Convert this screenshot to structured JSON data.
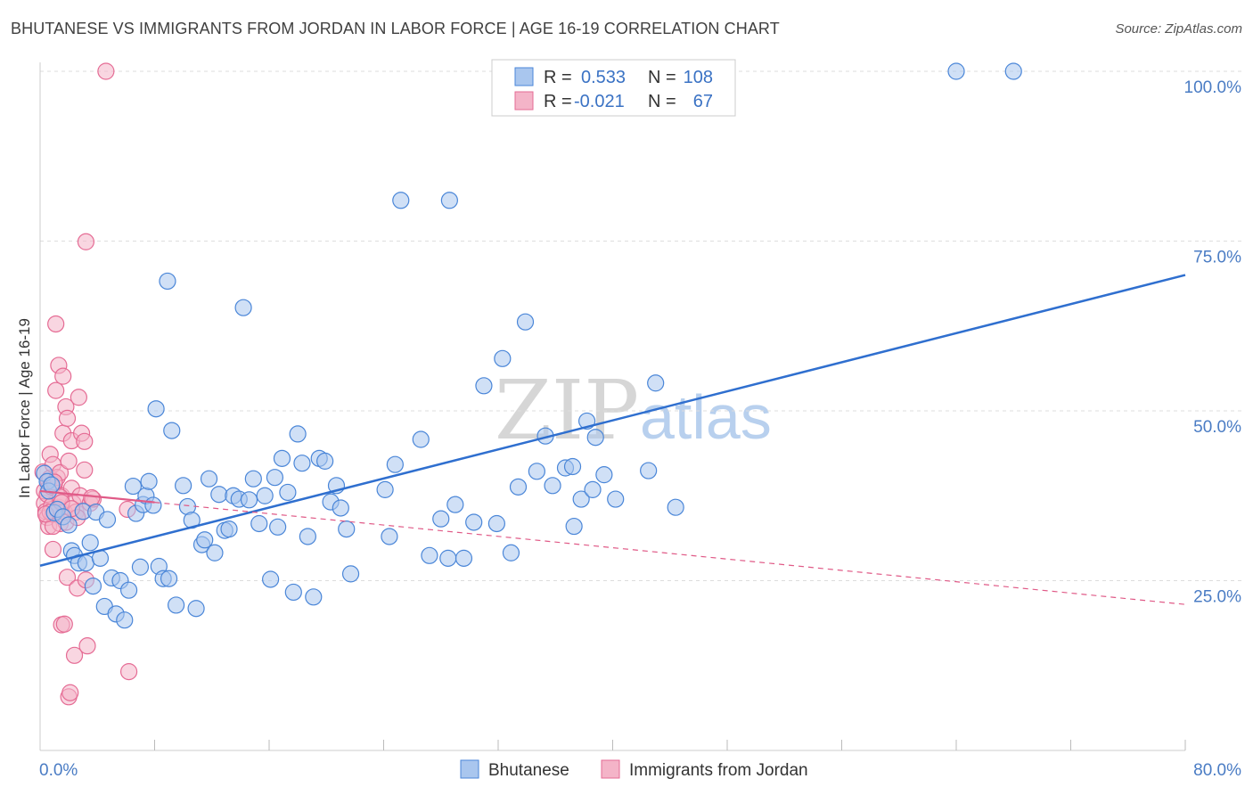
{
  "header": {
    "title": "BHUTANESE VS IMMIGRANTS FROM JORDAN IN LABOR FORCE | AGE 16-19 CORRELATION CHART",
    "source": "Source: ZipAtlas.com"
  },
  "watermark": {
    "zip": "ZIP",
    "atlas": "atlas"
  },
  "colors": {
    "blue": "#4a86d8",
    "blue_fill": "#a9c6ee",
    "blue_line": "#2f6fcf",
    "pink": "#e56b94",
    "pink_fill": "#f4b4c8",
    "pink_line": "#e05a87",
    "tick": "#4a7cc4",
    "grid": "#dddddd"
  },
  "legend": {
    "rows": [
      {
        "r_label": "R =",
        "r_value": "0.533",
        "n_label": "N =",
        "n_value": "108"
      },
      {
        "r_label": "R =",
        "r_value": "-0.021",
        "n_label": "N =",
        "n_value": "67"
      }
    ]
  },
  "chart_data": {
    "type": "scatter",
    "title": "BHUTANESE VS IMMIGRANTS FROM JORDAN IN LABOR FORCE | AGE 16-19 CORRELATION CHART",
    "xlabel": "",
    "ylabel": "In Labor Force | Age 16-19",
    "xlim": [
      0,
      80
    ],
    "ylim": [
      0,
      105
    ],
    "x_tick_labels": [
      "0.0%",
      "80.0%"
    ],
    "y_ticks": [
      25,
      50,
      75,
      100
    ],
    "y_tick_labels": [
      "25.0%",
      "50.0%",
      "75.0%",
      "100.0%"
    ],
    "legend_position": "top-center",
    "series": [
      {
        "name": "Bhutanese",
        "r": 0.533,
        "n": 108,
        "trend": {
          "x": [
            0,
            80
          ],
          "y": [
            27.2,
            70.0
          ],
          "style": "solid"
        },
        "points": [
          [
            0.3,
            40.8
          ],
          [
            0.5,
            39.6
          ],
          [
            0.6,
            38.2
          ],
          [
            0.8,
            39.1
          ],
          [
            1.0,
            35.0
          ],
          [
            1.2,
            35.5
          ],
          [
            1.6,
            34.4
          ],
          [
            2.0,
            33.2
          ],
          [
            2.2,
            29.4
          ],
          [
            2.4,
            28.7
          ],
          [
            2.7,
            27.6
          ],
          [
            3.0,
            35.2
          ],
          [
            3.2,
            27.6
          ],
          [
            3.5,
            30.6
          ],
          [
            3.7,
            24.2
          ],
          [
            3.9,
            35.1
          ],
          [
            4.2,
            28.3
          ],
          [
            4.5,
            21.2
          ],
          [
            4.7,
            34.0
          ],
          [
            5.0,
            25.4
          ],
          [
            5.3,
            20.1
          ],
          [
            5.6,
            25.0
          ],
          [
            5.9,
            19.2
          ],
          [
            6.2,
            23.6
          ],
          [
            6.5,
            38.9
          ],
          [
            6.7,
            34.9
          ],
          [
            7.0,
            27.0
          ],
          [
            7.2,
            36.2
          ],
          [
            7.4,
            37.5
          ],
          [
            7.6,
            39.6
          ],
          [
            7.9,
            36.1
          ],
          [
            8.1,
            50.3
          ],
          [
            8.3,
            27.1
          ],
          [
            8.6,
            25.3
          ],
          [
            9.0,
            25.3
          ],
          [
            8.9,
            69.1
          ],
          [
            9.2,
            47.1
          ],
          [
            9.5,
            21.4
          ],
          [
            10.0,
            39.0
          ],
          [
            10.3,
            35.9
          ],
          [
            10.6,
            33.9
          ],
          [
            10.9,
            20.9
          ],
          [
            11.3,
            30.3
          ],
          [
            11.5,
            31.0
          ],
          [
            11.8,
            40.0
          ],
          [
            12.2,
            29.1
          ],
          [
            12.5,
            37.7
          ],
          [
            12.9,
            32.4
          ],
          [
            13.2,
            32.6
          ],
          [
            13.5,
            37.5
          ],
          [
            13.9,
            37.0
          ],
          [
            14.2,
            65.2
          ],
          [
            14.6,
            36.9
          ],
          [
            14.9,
            40.0
          ],
          [
            15.3,
            33.4
          ],
          [
            15.7,
            37.5
          ],
          [
            16.1,
            25.2
          ],
          [
            16.4,
            40.2
          ],
          [
            16.6,
            32.9
          ],
          [
            16.9,
            43.0
          ],
          [
            17.3,
            38.0
          ],
          [
            17.7,
            23.3
          ],
          [
            18.0,
            46.6
          ],
          [
            18.3,
            42.3
          ],
          [
            18.7,
            31.5
          ],
          [
            19.1,
            22.6
          ],
          [
            19.5,
            43.0
          ],
          [
            19.9,
            42.6
          ],
          [
            20.3,
            36.6
          ],
          [
            20.7,
            39.0
          ],
          [
            21.0,
            35.7
          ],
          [
            21.4,
            32.6
          ],
          [
            21.7,
            26.0
          ],
          [
            24.1,
            38.4
          ],
          [
            24.4,
            31.5
          ],
          [
            24.8,
            42.1
          ],
          [
            25.2,
            81.0
          ],
          [
            26.6,
            45.8
          ],
          [
            27.2,
            28.7
          ],
          [
            28.0,
            34.1
          ],
          [
            28.5,
            28.3
          ],
          [
            29.0,
            36.2
          ],
          [
            29.6,
            28.3
          ],
          [
            30.3,
            33.6
          ],
          [
            31.0,
            53.7
          ],
          [
            31.9,
            33.4
          ],
          [
            32.3,
            57.7
          ],
          [
            32.9,
            29.1
          ],
          [
            33.4,
            38.8
          ],
          [
            33.9,
            63.1
          ],
          [
            34.7,
            41.1
          ],
          [
            35.3,
            46.3
          ],
          [
            35.8,
            39.0
          ],
          [
            36.7,
            41.6
          ],
          [
            37.3,
            33.0
          ],
          [
            37.2,
            41.8
          ],
          [
            37.8,
            37.0
          ],
          [
            38.2,
            48.5
          ],
          [
            38.6,
            38.4
          ],
          [
            38.8,
            46.1
          ],
          [
            39.4,
            40.6
          ],
          [
            40.2,
            37.0
          ],
          [
            42.5,
            41.2
          ],
          [
            43.0,
            54.1
          ],
          [
            44.4,
            35.8
          ],
          [
            28.6,
            81.0
          ],
          [
            64.0,
            100.0
          ],
          [
            68.0,
            100.0
          ]
        ]
      },
      {
        "name": "Immigrants from Jordan",
        "r": -0.021,
        "n": 67,
        "trend": {
          "x": [
            0,
            80
          ],
          "y": [
            38.2,
            21.5
          ],
          "style": "solid-then-dashed",
          "solid_until_x": 8.0
        },
        "points": [
          [
            0.2,
            41.0
          ],
          [
            0.3,
            36.4
          ],
          [
            0.3,
            38.2
          ],
          [
            0.4,
            35.2
          ],
          [
            0.5,
            34.3
          ],
          [
            0.5,
            37.7
          ],
          [
            0.6,
            39.6
          ],
          [
            0.6,
            33.0
          ],
          [
            0.7,
            40.1
          ],
          [
            0.7,
            43.6
          ],
          [
            0.8,
            36.0
          ],
          [
            0.8,
            38.8
          ],
          [
            0.9,
            42.1
          ],
          [
            0.9,
            29.6
          ],
          [
            1.0,
            35.0
          ],
          [
            1.0,
            39.2
          ],
          [
            1.1,
            62.8
          ],
          [
            1.1,
            53.0
          ],
          [
            1.2,
            40.2
          ],
          [
            1.2,
            35.3
          ],
          [
            1.3,
            56.7
          ],
          [
            1.3,
            35.8
          ],
          [
            1.4,
            33.4
          ],
          [
            1.4,
            40.9
          ],
          [
            1.5,
            18.5
          ],
          [
            1.5,
            37.5
          ],
          [
            1.6,
            55.1
          ],
          [
            1.6,
            46.7
          ],
          [
            1.7,
            18.6
          ],
          [
            1.7,
            35.1
          ],
          [
            1.8,
            50.6
          ],
          [
            1.8,
            33.6
          ],
          [
            1.9,
            48.9
          ],
          [
            1.9,
            25.5
          ],
          [
            2.0,
            7.9
          ],
          [
            2.0,
            42.6
          ],
          [
            2.1,
            8.5
          ],
          [
            2.2,
            38.6
          ],
          [
            2.2,
            45.6
          ],
          [
            2.3,
            36.4
          ],
          [
            2.4,
            14.0
          ],
          [
            2.5,
            35.1
          ],
          [
            2.6,
            23.9
          ],
          [
            2.7,
            52.0
          ],
          [
            2.8,
            37.5
          ],
          [
            2.9,
            46.7
          ],
          [
            3.0,
            35.2
          ],
          [
            3.1,
            41.3
          ],
          [
            3.1,
            45.5
          ],
          [
            3.2,
            25.1
          ],
          [
            3.3,
            15.4
          ],
          [
            3.5,
            36.4
          ],
          [
            3.7,
            37.0
          ],
          [
            4.6,
            100.0
          ],
          [
            3.2,
            74.9
          ],
          [
            6.2,
            11.6
          ],
          [
            6.1,
            35.5
          ],
          [
            1.0,
            39.5
          ],
          [
            0.9,
            34.8
          ],
          [
            0.7,
            35.1
          ],
          [
            2.6,
            34.3
          ],
          [
            3.6,
            37.2
          ],
          [
            0.9,
            33.0
          ],
          [
            1.4,
            37.3
          ],
          [
            0.4,
            34.8
          ],
          [
            1.5,
            36.5
          ],
          [
            2.2,
            35.6
          ]
        ]
      }
    ]
  }
}
